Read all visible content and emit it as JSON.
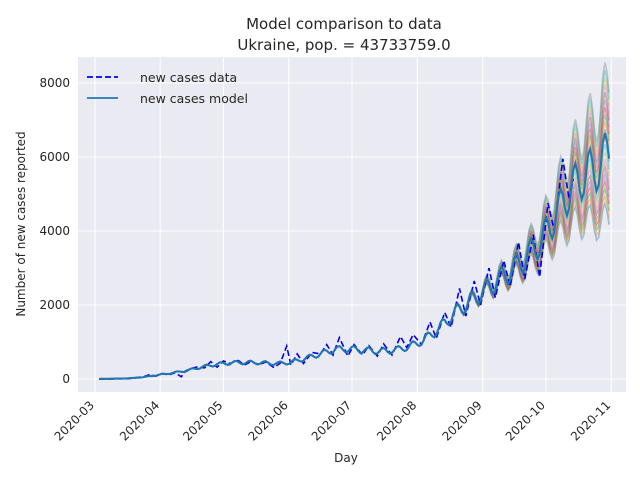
{
  "chart_data": {
    "type": "line",
    "title": "Model comparison to data",
    "subtitle": "Ukraine, pop. = 43733759.0",
    "xlabel": "Day",
    "ylabel": "Number of new cases reported",
    "x_ticks": [
      "2020-03",
      "2020-04",
      "2020-05",
      "2020-06",
      "2020-07",
      "2020-08",
      "2020-09",
      "2020-10",
      "2020-11"
    ],
    "y_ticks": [
      0,
      2000,
      4000,
      6000,
      8000
    ],
    "ylim": [
      -350,
      8700
    ],
    "xlim": [
      "2020-02-22",
      "2020-11-08"
    ],
    "grid": true,
    "legend_position": "top-left",
    "style": "seaborn-darkgrid",
    "series": [
      {
        "name": "new cases data",
        "line_style": "dashed",
        "color": "#0000ee",
        "points": [
          [
            "2020-03-03",
            2
          ],
          [
            "2020-03-10",
            5
          ],
          [
            "2020-03-17",
            10
          ],
          [
            "2020-03-24",
            60
          ],
          [
            "2020-03-27",
            120
          ],
          [
            "2020-03-30",
            80
          ],
          [
            "2020-04-02",
            150
          ],
          [
            "2020-04-05",
            110
          ],
          [
            "2020-04-08",
            170
          ],
          [
            "2020-04-11",
            60
          ],
          [
            "2020-04-13",
            220
          ],
          [
            "2020-04-16",
            290
          ],
          [
            "2020-04-19",
            330
          ],
          [
            "2020-04-22",
            300
          ],
          [
            "2020-04-25",
            470
          ],
          [
            "2020-04-28",
            320
          ],
          [
            "2020-05-01",
            490
          ],
          [
            "2020-05-04",
            420
          ],
          [
            "2020-05-08",
            500
          ],
          [
            "2020-05-11",
            380
          ],
          [
            "2020-05-14",
            470
          ],
          [
            "2020-05-18",
            390
          ],
          [
            "2020-05-21",
            460
          ],
          [
            "2020-05-25",
            310
          ],
          [
            "2020-05-28",
            430
          ],
          [
            "2020-05-31",
            890
          ],
          [
            "2020-06-02",
            380
          ],
          [
            "2020-06-05",
            680
          ],
          [
            "2020-06-08",
            420
          ],
          [
            "2020-06-12",
            720
          ],
          [
            "2020-06-16",
            680
          ],
          [
            "2020-06-19",
            930
          ],
          [
            "2020-06-22",
            650
          ],
          [
            "2020-06-25",
            1120
          ],
          [
            "2020-06-29",
            620
          ],
          [
            "2020-07-02",
            930
          ],
          [
            "2020-07-06",
            650
          ],
          [
            "2020-07-09",
            900
          ],
          [
            "2020-07-13",
            620
          ],
          [
            "2020-07-16",
            950
          ],
          [
            "2020-07-20",
            650
          ],
          [
            "2020-07-24",
            1150
          ],
          [
            "2020-07-27",
            850
          ],
          [
            "2020-07-30",
            1200
          ],
          [
            "2020-08-03",
            930
          ],
          [
            "2020-08-07",
            1540
          ],
          [
            "2020-08-10",
            1100
          ],
          [
            "2020-08-14",
            1800
          ],
          [
            "2020-08-17",
            1400
          ],
          [
            "2020-08-21",
            2450
          ],
          [
            "2020-08-24",
            1700
          ],
          [
            "2020-08-28",
            2650
          ],
          [
            "2020-08-31",
            2000
          ],
          [
            "2020-09-04",
            3000
          ],
          [
            "2020-09-07",
            2200
          ],
          [
            "2020-09-11",
            3200
          ],
          [
            "2020-09-14",
            2500
          ],
          [
            "2020-09-18",
            3700
          ],
          [
            "2020-09-21",
            2700
          ],
          [
            "2020-09-25",
            3900
          ],
          [
            "2020-09-28",
            2750
          ],
          [
            "2020-10-02",
            4750
          ],
          [
            "2020-10-05",
            4000
          ],
          [
            "2020-10-09",
            5950
          ],
          [
            "2020-10-12",
            4850
          ],
          [
            "2020-10-14",
            5400
          ]
        ]
      },
      {
        "name": "new cases model",
        "line_style": "solid",
        "color": "#1f77b4",
        "points": [
          [
            "2020-03-03",
            5
          ],
          [
            "2020-03-10",
            10
          ],
          [
            "2020-03-17",
            20
          ],
          [
            "2020-03-24",
            50
          ],
          [
            "2020-03-31",
            110
          ],
          [
            "2020-04-07",
            170
          ],
          [
            "2020-04-14",
            230
          ],
          [
            "2020-04-21",
            330
          ],
          [
            "2020-04-28",
            400
          ],
          [
            "2020-05-05",
            440
          ],
          [
            "2020-05-12",
            450
          ],
          [
            "2020-05-19",
            440
          ],
          [
            "2020-05-26",
            420
          ],
          [
            "2020-06-02",
            450
          ],
          [
            "2020-06-09",
            560
          ],
          [
            "2020-06-16",
            680
          ],
          [
            "2020-06-23",
            800
          ],
          [
            "2020-06-30",
            810
          ],
          [
            "2020-07-07",
            780
          ],
          [
            "2020-07-14",
            750
          ],
          [
            "2020-07-21",
            780
          ],
          [
            "2020-07-28",
            870
          ],
          [
            "2020-08-04",
            1050
          ],
          [
            "2020-08-11",
            1350
          ],
          [
            "2020-08-18",
            1750
          ],
          [
            "2020-08-25",
            2050
          ],
          [
            "2020-09-01",
            2350
          ],
          [
            "2020-09-08",
            2650
          ],
          [
            "2020-09-15",
            2950
          ],
          [
            "2020-09-22",
            3300
          ],
          [
            "2020-09-29",
            3750
          ],
          [
            "2020-10-06",
            4450
          ],
          [
            "2020-10-13",
            5150
          ],
          [
            "2020-10-20",
            5550
          ],
          [
            "2020-10-27",
            5750
          ],
          [
            "2020-10-31",
            6250
          ]
        ]
      }
    ],
    "ensemble": {
      "colors": [
        "#1f77b4",
        "#ff7f0e",
        "#2ca02c",
        "#d62728",
        "#9467bd",
        "#8c564b",
        "#e377c2",
        "#bcbd22",
        "#17becf",
        "#7f7f7f"
      ],
      "spread_start": "2020-08-01",
      "spread_end_fraction": 0.3
    }
  }
}
